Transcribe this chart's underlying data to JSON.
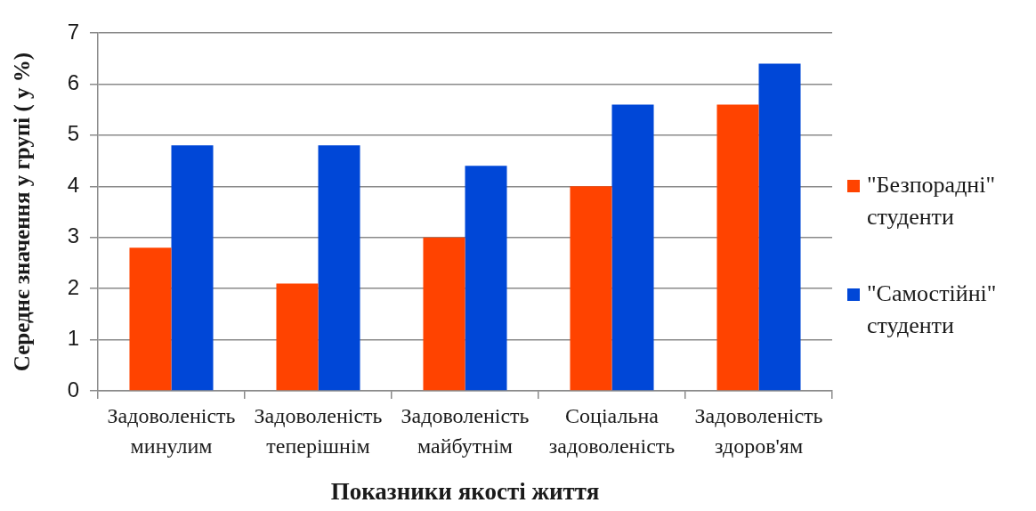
{
  "chart_data": {
    "type": "bar",
    "categories": [
      "Задоволеність минулим",
      "Задоволеність теперішнім",
      "Задоволеність майбутнім",
      "Соціальна задоволеність",
      "Задоволеність здоров'ям"
    ],
    "series": [
      {
        "name": "\"Безпорадні\" студенти",
        "color": "#ff4300",
        "values": [
          2.8,
          2.1,
          3.0,
          4.0,
          5.6
        ]
      },
      {
        "name": "\"Самостійні\" студенти",
        "color": "#0047d7",
        "values": [
          4.8,
          4.8,
          4.4,
          5.6,
          6.4
        ]
      }
    ],
    "xlabel": "Показники якості життя",
    "ylabel": "Середнє значення у групі ( у %)",
    "ylim": [
      0,
      7
    ],
    "yticks": [
      0,
      1,
      2,
      3,
      4,
      5,
      6,
      7
    ],
    "grid": "y",
    "legend": "right"
  }
}
